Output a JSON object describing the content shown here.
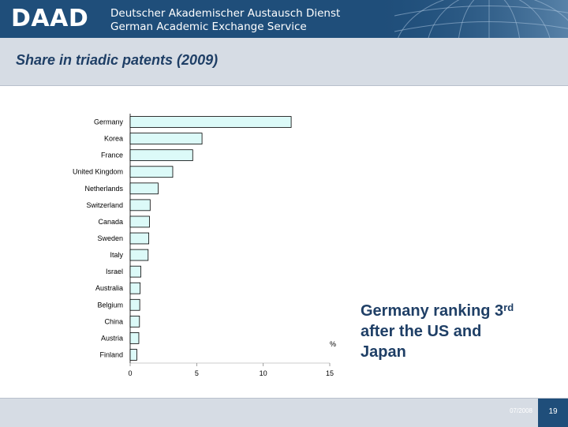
{
  "header": {
    "logo": "DAAD",
    "org_name_de": "Deutscher Akademischer Austausch Dienst",
    "org_name_en": "German Academic Exchange Service"
  },
  "slide": {
    "title": "Share in triadic patents (2009)",
    "note_main": "Germany ranking 3",
    "note_sup": "rd",
    "note_rest_1": "after the US and",
    "note_rest_2": "Japan"
  },
  "footer": {
    "date": "07/2008",
    "page": "19"
  },
  "colors": {
    "brand_dark": "#1f4e7a",
    "panel_gray": "#d6dce4",
    "bar_fill": "#dcfaf8",
    "bar_stroke": "#000000"
  },
  "chart_data": {
    "type": "bar",
    "orientation": "horizontal",
    "categories": [
      "Germany",
      "Korea",
      "France",
      "United Kingdom",
      "Netherlands",
      "Switzerland",
      "Canada",
      "Sweden",
      "Italy",
      "Israel",
      "Australia",
      "Belgium",
      "China",
      "Austria",
      "Finland"
    ],
    "values": [
      12.1,
      5.4,
      4.7,
      3.2,
      2.1,
      1.5,
      1.45,
      1.4,
      1.35,
      0.8,
      0.75,
      0.72,
      0.7,
      0.65,
      0.5
    ],
    "xlim": [
      0,
      15
    ],
    "xticks": [
      0,
      5,
      10,
      15
    ],
    "xlabel": "%",
    "title": "",
    "grid": false
  }
}
